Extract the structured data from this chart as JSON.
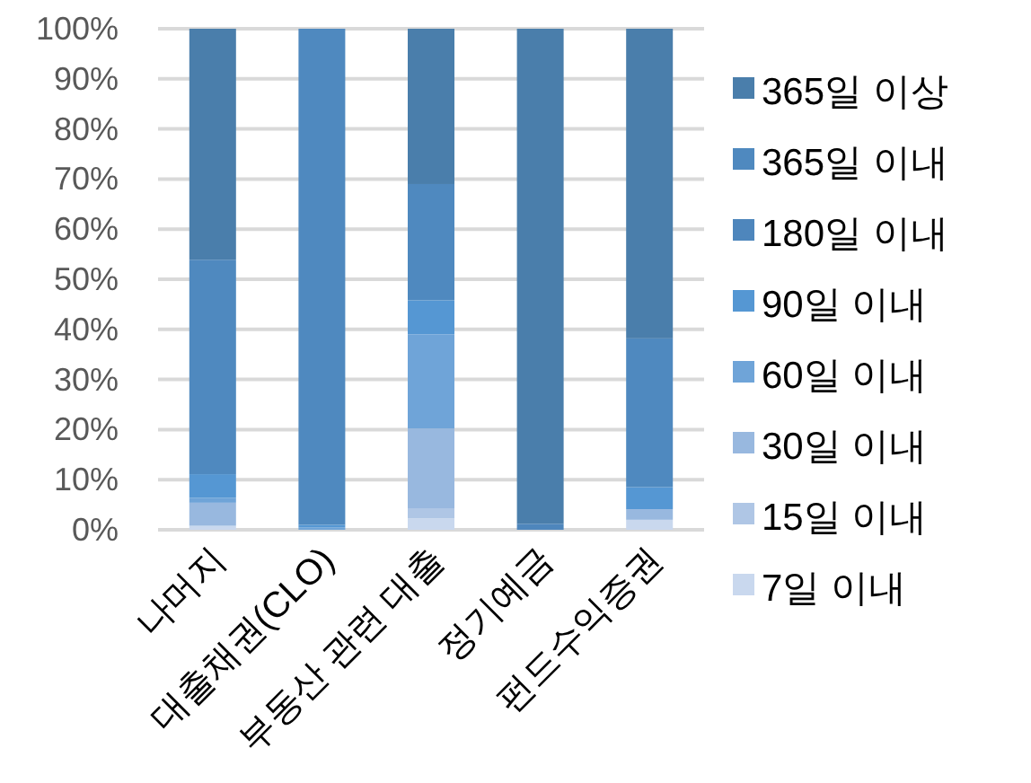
{
  "chart_data": {
    "type": "bar",
    "stacked": true,
    "grid": "y",
    "legend": "right",
    "categories": [
      "나머지",
      "대출채권(CLO)",
      "부동산 관련 대출",
      "정기예금",
      "펀드수익증권"
    ],
    "series": [
      {
        "name": "7일 이내",
        "color": "#c9d8ee",
        "values": [
          0.8,
          0,
          2.3,
          0,
          2.0
        ]
      },
      {
        "name": "15일 이내",
        "color": "#afc6e5",
        "values": [
          0,
          0,
          2.0,
          0,
          0
        ]
      },
      {
        "name": "30일 이내",
        "color": "#98b8df",
        "values": [
          4.6,
          0,
          15.9,
          0,
          2.1
        ]
      },
      {
        "name": "60일 이내",
        "color": "#6fa4d8",
        "values": [
          1.0,
          0.5,
          18.8,
          0,
          0
        ]
      },
      {
        "name": "90일 이내",
        "color": "#5597d3",
        "values": [
          4.7,
          0.5,
          6.8,
          0,
          4.4
        ]
      },
      {
        "name": "180일 이내",
        "color": "#4e86bc",
        "values": [
          0,
          0,
          0,
          1.2,
          0
        ]
      },
      {
        "name": "365일 이내",
        "color": "#4f89bf",
        "values": [
          42.8,
          99,
          23.2,
          0,
          29.7
        ]
      },
      {
        "name": "365일 이상",
        "color": "#4a7eab",
        "values": [
          46.1,
          0,
          31.0,
          98.8,
          61.8
        ]
      }
    ],
    "ylim": [
      0,
      100
    ],
    "yticks": [
      {
        "value": 0,
        "label": "0%"
      },
      {
        "value": 10,
        "label": "10%"
      },
      {
        "value": 20,
        "label": "20%"
      },
      {
        "value": 30,
        "label": "30%"
      },
      {
        "value": 40,
        "label": "40%"
      },
      {
        "value": 50,
        "label": "50%"
      },
      {
        "value": 60,
        "label": "60%"
      },
      {
        "value": 70,
        "label": "70%"
      },
      {
        "value": 80,
        "label": "80%"
      },
      {
        "value": 90,
        "label": "90%"
      },
      {
        "value": 100,
        "label": "100%"
      }
    ]
  }
}
